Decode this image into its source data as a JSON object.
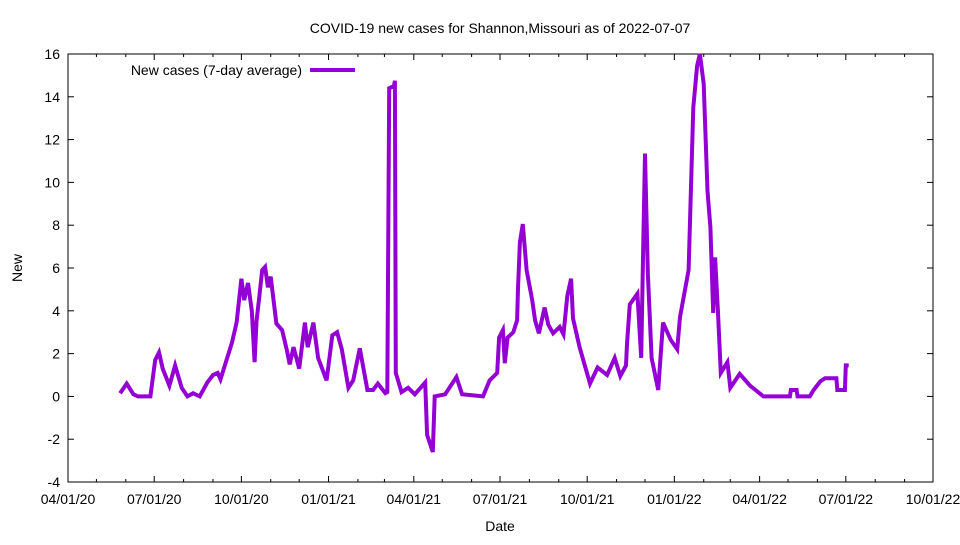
{
  "chart_data": {
    "type": "line",
    "title": "COVID-19 new cases for Shannon,Missouri as of 2022-07-07",
    "xlabel": "Date",
    "ylabel": "New",
    "xlim": [
      "2020-04-01",
      "2022-10-01"
    ],
    "ylim": [
      -4,
      16
    ],
    "x_ticks": [
      "04/01/20",
      "07/01/20",
      "10/01/20",
      "01/01/21",
      "04/01/21",
      "07/01/21",
      "10/01/21",
      "01/01/22",
      "04/01/22",
      "07/01/22",
      "10/01/22"
    ],
    "x_tick_dates": [
      "2020-04-01",
      "2020-07-01",
      "2020-10-01",
      "2021-01-01",
      "2021-04-01",
      "2021-07-01",
      "2021-10-01",
      "2022-01-01",
      "2022-04-01",
      "2022-07-01",
      "2022-10-01"
    ],
    "y_ticks": [
      -4,
      -2,
      0,
      2,
      4,
      6,
      8,
      10,
      12,
      14,
      16
    ],
    "grid": false,
    "legend_position": "top-left",
    "series": [
      {
        "name": "New cases (7-day average)",
        "color": "#9400d3",
        "points": [
          [
            "2020-05-26",
            0.15
          ],
          [
            "2020-06-02",
            0.6
          ],
          [
            "2020-06-09",
            0.1
          ],
          [
            "2020-06-14",
            0
          ],
          [
            "2020-06-27",
            0
          ],
          [
            "2020-07-02",
            1.7
          ],
          [
            "2020-07-06",
            2.05
          ],
          [
            "2020-07-10",
            1.3
          ],
          [
            "2020-07-17",
            0.5
          ],
          [
            "2020-07-23",
            1.45
          ],
          [
            "2020-07-30",
            0.4
          ],
          [
            "2020-08-05",
            0
          ],
          [
            "2020-08-11",
            0.15
          ],
          [
            "2020-08-18",
            0
          ],
          [
            "2020-08-26",
            0.65
          ],
          [
            "2020-09-01",
            1.0
          ],
          [
            "2020-09-06",
            1.1
          ],
          [
            "2020-09-09",
            0.8
          ],
          [
            "2020-09-16",
            1.8
          ],
          [
            "2020-09-21",
            2.5
          ],
          [
            "2020-09-26",
            3.45
          ],
          [
            "2020-10-01",
            5.5
          ],
          [
            "2020-10-04",
            4.5
          ],
          [
            "2020-10-08",
            5.3
          ],
          [
            "2020-10-12",
            4.0
          ],
          [
            "2020-10-15",
            1.6
          ],
          [
            "2020-10-17",
            3.5
          ],
          [
            "2020-10-20",
            4.7
          ],
          [
            "2020-10-23",
            5.9
          ],
          [
            "2020-10-26",
            6.05
          ],
          [
            "2020-10-29",
            5.1
          ],
          [
            "2020-11-01",
            5.6
          ],
          [
            "2020-11-07",
            3.4
          ],
          [
            "2020-11-13",
            3.1
          ],
          [
            "2020-11-18",
            2.15
          ],
          [
            "2020-11-21",
            1.5
          ],
          [
            "2020-11-25",
            2.3
          ],
          [
            "2020-12-01",
            1.3
          ],
          [
            "2020-12-07",
            3.45
          ],
          [
            "2020-12-10",
            2.3
          ],
          [
            "2020-12-16",
            3.45
          ],
          [
            "2020-12-21",
            1.8
          ],
          [
            "2020-12-30",
            0.75
          ],
          [
            "2021-01-05",
            2.85
          ],
          [
            "2021-01-10",
            3.0
          ],
          [
            "2021-01-15",
            2.2
          ],
          [
            "2021-01-22",
            0.4
          ],
          [
            "2021-01-27",
            0.75
          ],
          [
            "2021-02-03",
            2.25
          ],
          [
            "2021-02-11",
            0.3
          ],
          [
            "2021-02-17",
            0.3
          ],
          [
            "2021-02-22",
            0.6
          ],
          [
            "2021-03-02",
            0.15
          ],
          [
            "2021-03-04",
            0.2
          ],
          [
            "2021-03-06",
            14.4
          ],
          [
            "2021-03-11",
            14.5
          ],
          [
            "2021-03-12",
            14.75
          ],
          [
            "2021-03-13",
            1.1
          ],
          [
            "2021-03-19",
            0.2
          ],
          [
            "2021-03-26",
            0.4
          ],
          [
            "2021-04-02",
            0.1
          ],
          [
            "2021-04-13",
            0.65
          ],
          [
            "2021-04-15",
            -1.8
          ],
          [
            "2021-04-21",
            -2.6
          ],
          [
            "2021-04-23",
            0
          ],
          [
            "2021-05-04",
            0.1
          ],
          [
            "2021-05-16",
            0.9
          ],
          [
            "2021-05-22",
            0.1
          ],
          [
            "2021-06-13",
            0
          ],
          [
            "2021-06-20",
            0.75
          ],
          [
            "2021-06-28",
            1.1
          ],
          [
            "2021-06-30",
            2.75
          ],
          [
            "2021-07-04",
            3.1
          ],
          [
            "2021-07-06",
            1.55
          ],
          [
            "2021-07-09",
            2.75
          ],
          [
            "2021-07-15",
            3.0
          ],
          [
            "2021-07-19",
            3.55
          ],
          [
            "2021-07-20",
            5.05
          ],
          [
            "2021-07-22",
            7.2
          ],
          [
            "2021-07-25",
            8.05
          ],
          [
            "2021-07-29",
            5.9
          ],
          [
            "2021-08-04",
            4.5
          ],
          [
            "2021-08-07",
            3.55
          ],
          [
            "2021-08-11",
            2.95
          ],
          [
            "2021-08-17",
            4.15
          ],
          [
            "2021-08-21",
            3.35
          ],
          [
            "2021-08-26",
            2.95
          ],
          [
            "2021-09-02",
            3.25
          ],
          [
            "2021-09-06",
            2.9
          ],
          [
            "2021-09-10",
            4.7
          ],
          [
            "2021-09-14",
            5.5
          ],
          [
            "2021-09-16",
            3.65
          ],
          [
            "2021-09-23",
            2.3
          ],
          [
            "2021-10-04",
            0.6
          ],
          [
            "2021-10-12",
            1.35
          ],
          [
            "2021-10-22",
            1.0
          ],
          [
            "2021-10-30",
            1.8
          ],
          [
            "2021-11-05",
            0.95
          ],
          [
            "2021-11-11",
            1.45
          ],
          [
            "2021-11-12",
            2.45
          ],
          [
            "2021-11-15",
            4.3
          ],
          [
            "2021-11-23",
            4.8
          ],
          [
            "2021-11-27",
            1.8
          ],
          [
            "2021-11-29",
            6.7
          ],
          [
            "2021-12-01",
            11.35
          ],
          [
            "2021-12-04",
            5.8
          ],
          [
            "2021-12-08",
            1.8
          ],
          [
            "2021-12-15",
            0.3
          ],
          [
            "2021-12-20",
            3.45
          ],
          [
            "2021-12-28",
            2.65
          ],
          [
            "2022-01-04",
            2.2
          ],
          [
            "2022-01-07",
            3.7
          ],
          [
            "2022-01-16",
            5.9
          ],
          [
            "2022-01-21",
            13.5
          ],
          [
            "2022-01-25",
            15.45
          ],
          [
            "2022-01-28",
            16
          ],
          [
            "2022-02-01",
            14.6
          ],
          [
            "2022-02-05",
            9.6
          ],
          [
            "2022-02-08",
            7.9
          ],
          [
            "2022-02-11",
            3.9
          ],
          [
            "2022-02-13",
            6.5
          ],
          [
            "2022-02-16",
            4.0
          ],
          [
            "2022-02-19",
            1.1
          ],
          [
            "2022-02-26",
            1.6
          ],
          [
            "2022-03-01",
            0.4
          ],
          [
            "2022-03-11",
            1.05
          ],
          [
            "2022-03-22",
            0.5
          ],
          [
            "2022-04-05",
            0
          ],
          [
            "2022-05-03",
            0
          ],
          [
            "2022-05-04",
            0.3
          ],
          [
            "2022-05-10",
            0.3
          ],
          [
            "2022-05-11",
            0
          ],
          [
            "2022-05-24",
            0
          ],
          [
            "2022-05-28",
            0.3
          ],
          [
            "2022-06-04",
            0.7
          ],
          [
            "2022-06-09",
            0.85
          ],
          [
            "2022-06-21",
            0.85
          ],
          [
            "2022-06-22",
            0.3
          ],
          [
            "2022-06-30",
            0.3
          ],
          [
            "2022-07-01",
            1.45
          ],
          [
            "2022-07-04",
            1.45
          ]
        ]
      }
    ]
  }
}
